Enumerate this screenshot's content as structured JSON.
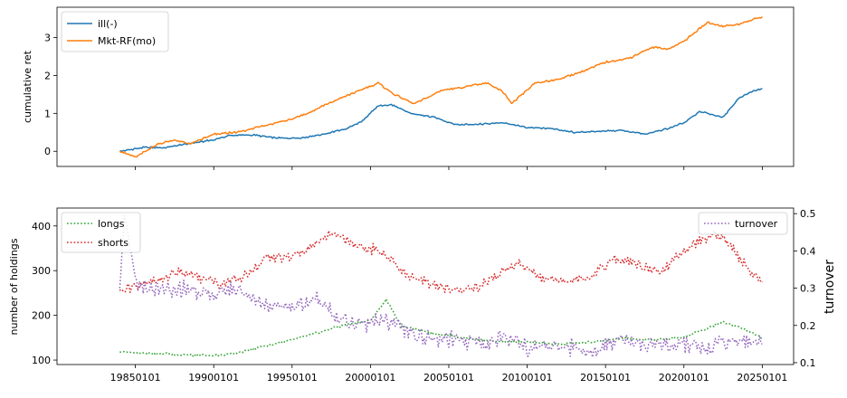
{
  "chart_data": [
    {
      "type": "line",
      "ylabel": "cumulative ret",
      "xlim": [
        1980,
        2027
      ],
      "ylim": [
        -0.4,
        3.8
      ],
      "yticks": [
        0,
        1,
        2,
        3
      ],
      "legend_position": "top-left",
      "colors": {
        "ill": "#1f77b4",
        "mkt": "#ff7f0e"
      },
      "series": [
        {
          "name": "ill(-)",
          "x": [
            1984.0,
            1985.5,
            1987,
            1988,
            1990,
            1991,
            1992.5,
            1994,
            1995.5,
            1997,
            1998.5,
            1999.5,
            2000.5,
            2001.5,
            2002.5,
            2004,
            2005.5,
            2007,
            2008.5,
            2010,
            2011.5,
            2013,
            2014.5,
            2016,
            2017.5,
            2019,
            2020,
            2021,
            2022.5,
            2023.5,
            2024.5,
            2025.0
          ],
          "y": [
            0.0,
            0.1,
            0.1,
            0.18,
            0.3,
            0.42,
            0.43,
            0.35,
            0.35,
            0.45,
            0.6,
            0.8,
            1.2,
            1.22,
            1.0,
            0.9,
            0.7,
            0.72,
            0.75,
            0.63,
            0.6,
            0.5,
            0.52,
            0.55,
            0.45,
            0.6,
            0.75,
            1.05,
            0.9,
            1.4,
            1.6,
            1.65
          ]
        },
        {
          "name": "Mkt-RF(mo)",
          "x": [
            1984.0,
            1985.0,
            1986.5,
            1987.5,
            1988.5,
            1990.0,
            1991.5,
            1993.0,
            1994.5,
            1996.0,
            1997.5,
            1999.0,
            2000.5,
            2001.5,
            2002.8,
            2004.5,
            2006.0,
            2007.5,
            2008.5,
            2009.0,
            2010.5,
            2012.0,
            2013.5,
            2015.0,
            2016.5,
            2018.0,
            2019.0,
            2020.0,
            2021.5,
            2022.5,
            2023.5,
            2025.0
          ],
          "y": [
            0.0,
            -0.15,
            0.2,
            0.3,
            0.2,
            0.45,
            0.5,
            0.65,
            0.8,
            1.0,
            1.3,
            1.55,
            1.8,
            1.5,
            1.25,
            1.6,
            1.7,
            1.8,
            1.55,
            1.25,
            1.8,
            1.9,
            2.1,
            2.35,
            2.45,
            2.75,
            2.7,
            2.9,
            3.4,
            3.3,
            3.35,
            3.55
          ]
        }
      ]
    },
    {
      "type": "line",
      "ylabel": "number of holdings",
      "y2label": "turnover",
      "xlim": [
        1980,
        2027
      ],
      "ylim": [
        90,
        440
      ],
      "yticks": [
        100,
        200,
        300,
        400
      ],
      "y2lim": [
        0.095,
        0.515
      ],
      "y2ticks": [
        0.1,
        0.2,
        0.3,
        0.4,
        0.5
      ],
      "xticks": [
        1985,
        1990,
        1995,
        2000,
        2005,
        2010,
        2015,
        2020,
        2025
      ],
      "xticklabels": [
        "19850101",
        "19900101",
        "19950101",
        "20000101",
        "20050101",
        "20100101",
        "20150101",
        "20200101",
        "20250101"
      ],
      "legend_position": "top-left",
      "legend2_position": "top-right",
      "colors": {
        "longs": "#2ca02c",
        "shorts": "#d62728",
        "turnover": "#9467bd"
      },
      "series": [
        {
          "name": "longs",
          "axis": "left",
          "x": [
            1984,
            1986,
            1988,
            1990,
            1991.5,
            1993,
            1995,
            1997,
            1998.5,
            2000,
            2001,
            2002,
            2004,
            2006,
            2008,
            2010,
            2012,
            2014,
            2016,
            2018,
            2020,
            2021,
            2022.5,
            2023.5,
            2025
          ],
          "y": [
            118,
            115,
            112,
            110,
            115,
            130,
            145,
            165,
            180,
            188,
            235,
            175,
            160,
            150,
            142,
            140,
            135,
            140,
            148,
            145,
            150,
            165,
            185,
            175,
            150
          ]
        },
        {
          "name": "shorts",
          "axis": "left",
          "x": [
            1984,
            1985,
            1986.5,
            1988,
            1989,
            1990.5,
            1992,
            1993.5,
            1995,
            1996.5,
            1997.5,
            1999,
            2000.5,
            2001.5,
            2002.5,
            2004,
            2005.5,
            2007,
            2008.5,
            2009.5,
            2011,
            2012.5,
            2014,
            2015.5,
            2017,
            2018.5,
            2019.5,
            2021,
            2022,
            2023,
            2024,
            2025
          ],
          "y": [
            255,
            265,
            280,
            300,
            285,
            270,
            290,
            330,
            330,
            360,
            385,
            355,
            345,
            320,
            285,
            270,
            255,
            265,
            300,
            315,
            285,
            275,
            290,
            325,
            315,
            290,
            330,
            365,
            385,
            360,
            305,
            275
          ]
        },
        {
          "name": "turnover",
          "axis": "right",
          "x": [
            1984,
            1984.3,
            1985,
            1986.5,
            1988,
            1990,
            1991.5,
            1993,
            1995,
            1996.5,
            1998,
            1999.5,
            2000.5,
            2001.5,
            2003,
            2005,
            2007,
            2008.5,
            2010,
            2012,
            2014,
            2016,
            2018,
            2020,
            2021.5,
            2023,
            2025
          ],
          "y": [
            0.3,
            0.5,
            0.31,
            0.29,
            0.3,
            0.28,
            0.3,
            0.26,
            0.25,
            0.27,
            0.22,
            0.2,
            0.22,
            0.2,
            0.17,
            0.16,
            0.15,
            0.17,
            0.14,
            0.15,
            0.13,
            0.16,
            0.14,
            0.15,
            0.14,
            0.16,
            0.15
          ]
        }
      ]
    }
  ]
}
